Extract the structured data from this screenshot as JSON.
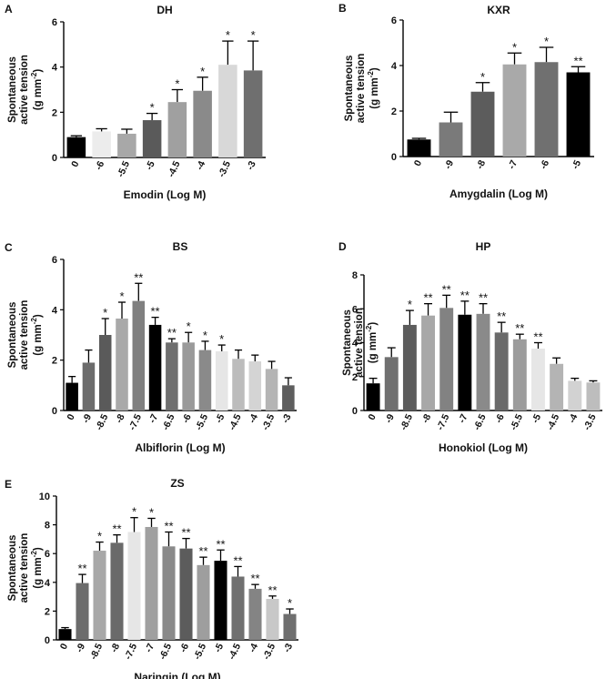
{
  "chart_data": [
    {
      "type": "bar",
      "panel": "A",
      "title": "DH",
      "xlabel": "Emodin (Log M)",
      "ylabel": [
        "Spontaneous",
        "active tension",
        "(g mm",
        "-2",
        ")"
      ],
      "ylim": [
        0,
        6
      ],
      "yticks": [
        "0",
        "2",
        "4",
        "6"
      ],
      "categories": [
        "0",
        "-6",
        "-5.5",
        "-5",
        "-4.5",
        "-4",
        "-3.5",
        "-3"
      ],
      "values": [
        0.9,
        1.15,
        1.05,
        1.65,
        2.45,
        2.95,
        4.1,
        3.85
      ],
      "errors": [
        0.06,
        0.12,
        0.2,
        0.3,
        0.55,
        0.6,
        1.05,
        1.3
      ],
      "significance": [
        "",
        "",
        "",
        "*",
        "*",
        "*",
        "*",
        "*"
      ],
      "colors": [
        "#000000",
        "#ececec",
        "#a8a8a8",
        "#5a5a5a",
        "#a0a0a0",
        "#8a8a8a",
        "#d8d8d8",
        "#6f6f6f"
      ]
    },
    {
      "type": "bar",
      "panel": "B",
      "title": "KXR",
      "xlabel": "Amygdalin (Log M)",
      "ylabel": [
        "Spontaneous",
        "active tension",
        "(g mm",
        "-2",
        ")"
      ],
      "ylim": [
        0,
        6
      ],
      "yticks": [
        "0",
        "2",
        "4",
        "6"
      ],
      "categories": [
        "0",
        "-9",
        "-8",
        "-7",
        "-6",
        "-5"
      ],
      "values": [
        0.75,
        1.5,
        2.85,
        4.05,
        4.15,
        3.7
      ],
      "errors": [
        0.05,
        0.45,
        0.4,
        0.5,
        0.65,
        0.25
      ],
      "significance": [
        "",
        "",
        "*",
        "*",
        "*",
        "**"
      ],
      "colors": [
        "#000000",
        "#7a7a7a",
        "#5c5c5c",
        "#a9a9a9",
        "#707070",
        "#000000"
      ]
    },
    {
      "type": "bar",
      "panel": "C",
      "title": "BS",
      "xlabel": "Albiflorin (Log M)",
      "ylabel": [
        "Spontaneous",
        "active tension",
        "(g mm",
        "-2",
        ")"
      ],
      "ylim": [
        0,
        6
      ],
      "yticks": [
        "0",
        "2",
        "4",
        "6"
      ],
      "categories": [
        "0",
        "-9",
        "-8.5",
        "-8",
        "-7.5",
        "-7",
        "-6.5",
        "-6",
        "-5.5",
        "-5",
        "-4.5",
        "-4",
        "-3.5",
        "-3"
      ],
      "values": [
        1.1,
        1.9,
        3.0,
        3.65,
        4.35,
        3.4,
        2.7,
        2.7,
        2.4,
        2.35,
        2.05,
        1.95,
        1.65,
        1.0
      ],
      "errors": [
        0.25,
        0.5,
        0.65,
        0.65,
        0.7,
        0.3,
        0.15,
        0.4,
        0.35,
        0.25,
        0.35,
        0.25,
        0.3,
        0.3
      ],
      "significance": [
        "",
        "",
        "*",
        "*",
        "**",
        "**",
        "**",
        "*",
        "*",
        "*",
        "",
        "",
        "",
        ""
      ],
      "colors": [
        "#000000",
        "#6c6c6c",
        "#5a5a5a",
        "#a9a9a9",
        "#808080",
        "#000000",
        "#6f6f6f",
        "#9a9a9a",
        "#8a8a8a",
        "#e6e6e6",
        "#bcbcbc",
        "#d4d4d4",
        "#b4b4b4",
        "#5e5e5e"
      ]
    },
    {
      "type": "bar",
      "panel": "D",
      "title": "HP",
      "xlabel": "Honokiol (Log M)",
      "ylabel": [
        "Spontaneous",
        "active tension",
        "(g mm",
        "-2",
        ")"
      ],
      "ylim": [
        0,
        8
      ],
      "yticks": [
        "0",
        "2",
        "4",
        "6",
        "8"
      ],
      "categories": [
        "0",
        "-9",
        "-8.5",
        "-8",
        "-7.5",
        "-7",
        "-6.5",
        "-6",
        "-5.5",
        "-5",
        "-4.5",
        "-4",
        "-3.5"
      ],
      "values": [
        1.6,
        3.15,
        5.05,
        5.6,
        6.05,
        5.65,
        5.7,
        4.6,
        4.2,
        3.65,
        2.75,
        1.75,
        1.65
      ],
      "errors": [
        0.3,
        0.55,
        0.85,
        0.7,
        0.75,
        0.8,
        0.6,
        0.6,
        0.3,
        0.35,
        0.35,
        0.15,
        0.1
      ],
      "significance": [
        "",
        "",
        "*",
        "**",
        "**",
        "**",
        "**",
        "**",
        "**",
        "**",
        "",
        "",
        ""
      ],
      "colors": [
        "#000000",
        "#707070",
        "#5c5c5c",
        "#a8a8a8",
        "#828282",
        "#000000",
        "#8a8a8a",
        "#6a6a6a",
        "#9c9c9c",
        "#e6e6e6",
        "#b4b4b4",
        "#d2d2d2",
        "#bdbdbd"
      ]
    },
    {
      "type": "bar",
      "panel": "E",
      "title": "ZS",
      "xlabel": "Naringin (Log M)",
      "ylabel": [
        "Spontaneous",
        "active tension",
        "(g mm",
        "-2",
        ")"
      ],
      "ylim": [
        0,
        10
      ],
      "yticks": [
        "0",
        "2",
        "4",
        "6",
        "8",
        "10"
      ],
      "categories": [
        "0",
        "-9",
        "-8.5",
        "-8",
        "-7.5",
        "-7",
        "-6.5",
        "-6",
        "-5.5",
        "-5",
        "-4.5",
        "-4",
        "-3.5",
        "-3"
      ],
      "values": [
        0.75,
        3.95,
        6.2,
        6.75,
        7.5,
        7.85,
        6.5,
        6.35,
        5.2,
        5.5,
        4.4,
        3.55,
        2.85,
        1.8
      ],
      "errors": [
        0.1,
        0.6,
        0.6,
        0.55,
        1.0,
        0.6,
        1.0,
        0.7,
        0.55,
        0.75,
        0.7,
        0.3,
        0.2,
        0.35
      ],
      "significance": [
        "",
        "**",
        "*",
        "**",
        "*",
        "*",
        "**",
        "**",
        "**",
        "**",
        "**",
        "**",
        "**",
        "*"
      ],
      "colors": [
        "#000000",
        "#6c6c6c",
        "#a8a8a8",
        "#6a6a6a",
        "#e6e6e6",
        "#a0a0a0",
        "#8a8a8a",
        "#5c5c5c",
        "#9e9e9e",
        "#000000",
        "#707070",
        "#848484",
        "#c8c8c8",
        "#6f6f6f"
      ]
    }
  ]
}
